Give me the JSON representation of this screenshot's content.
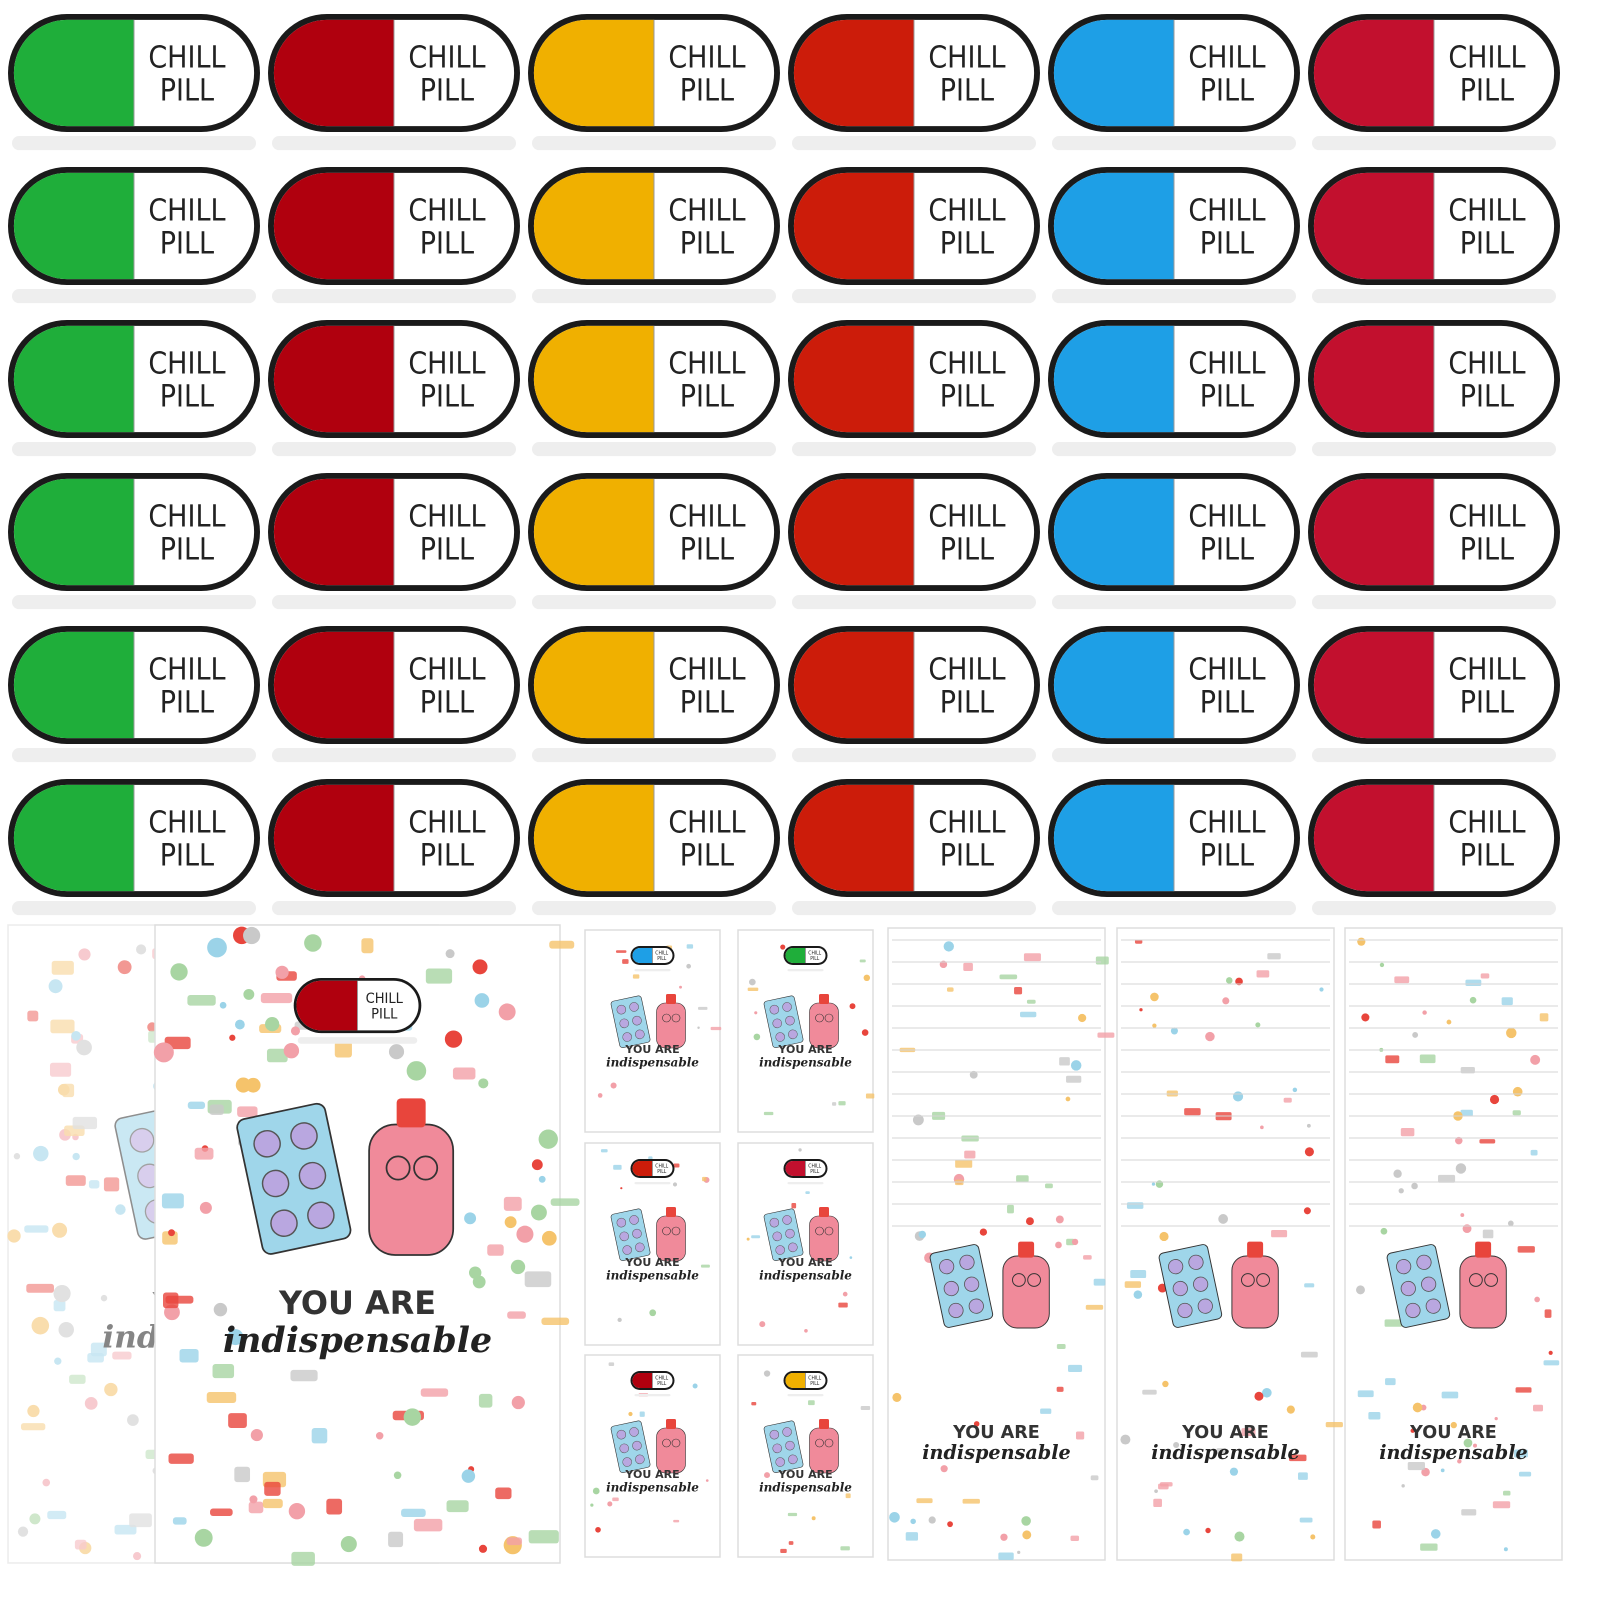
{
  "pins": {
    "label": [
      "CHILL",
      "PILL"
    ],
    "colors": [
      "#1fae3a",
      "#b0000e",
      "#f0b000",
      "#cc1c0a",
      "#1e9fe6",
      "#c2102e"
    ]
  },
  "card": {
    "headline": "YOU ARE",
    "tagline": "indispensable",
    "big_pin_color": "#b0000e",
    "small_pin_colors": [
      "#1e9fe6",
      "#1fae3a",
      "#cc1c0a",
      "#c2102e",
      "#b0000e",
      "#f0b000"
    ]
  }
}
